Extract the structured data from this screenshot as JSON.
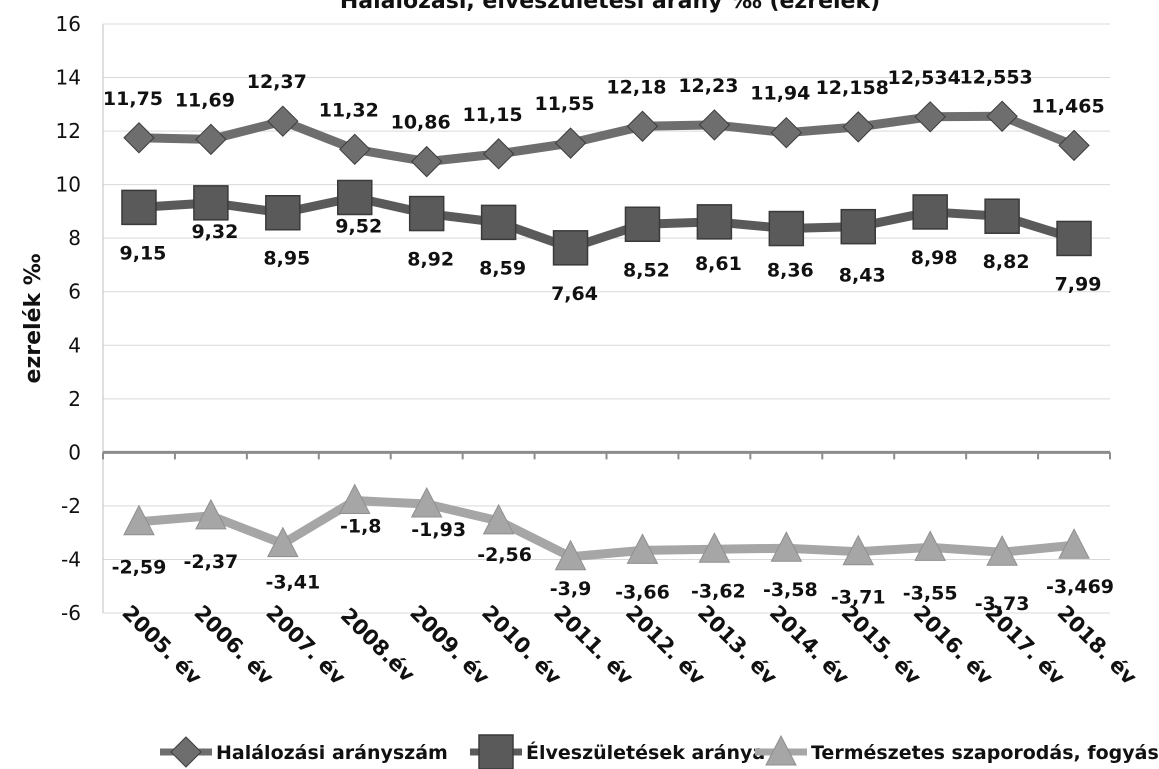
{
  "chart_data": {
    "type": "line",
    "title": "Halálozási, élveszületési arány ‰ (ezrelék)",
    "xlabel": "",
    "ylabel": "ezrelék ‰",
    "ylim": [
      -6,
      16
    ],
    "yticks": [
      -6,
      -4,
      -2,
      0,
      2,
      4,
      6,
      8,
      10,
      12,
      14,
      16
    ],
    "grid": true,
    "legend_position": "bottom",
    "categories": [
      "2005. év",
      "2006. év",
      "2007. év",
      "2008.év",
      "2009. év",
      "2010. év",
      "2011. év",
      "2012. év",
      "2013. év",
      "2014. év",
      "2015. év",
      "2016. év",
      "2017. év",
      "2018. év"
    ],
    "series": [
      {
        "name": "Halálozási arányszám",
        "marker": "diamond",
        "color": "#6e6e6e",
        "values": [
          11.75,
          11.69,
          12.37,
          11.32,
          10.86,
          11.15,
          11.55,
          12.18,
          12.23,
          11.94,
          12.158,
          12.534,
          12.553,
          11.465
        ],
        "labels": [
          "11,75",
          "11,69",
          "12,37",
          "11,32",
          "10,86",
          "11,15",
          "11,55",
          "12,18",
          "12,23",
          "11,94",
          "12,158",
          "12,534",
          "12,553",
          "11,465"
        ]
      },
      {
        "name": "Élveszületések aránya",
        "marker": "square",
        "color": "#5a5a5a",
        "values": [
          9.15,
          9.32,
          8.95,
          9.52,
          8.92,
          8.59,
          7.64,
          8.52,
          8.61,
          8.36,
          8.43,
          8.98,
          8.82,
          7.99
        ],
        "labels": [
          "9,15",
          "9,32",
          "8,95",
          "9,52",
          "8,92",
          "8,59",
          "7,64",
          "8,52",
          "8,61",
          "8,36",
          "8,43",
          "8,98",
          "8,82",
          "7,99"
        ]
      },
      {
        "name": "Természetes szaporodás, fogyás",
        "marker": "triangle",
        "color": "#a6a6a6",
        "values": [
          -2.59,
          -2.37,
          -3.41,
          -1.8,
          -1.93,
          -2.56,
          -3.9,
          -3.66,
          -3.62,
          -3.58,
          -3.71,
          -3.55,
          -3.73,
          -3.469
        ],
        "labels": [
          "-2,59",
          "-2,37",
          "-3,41",
          "-1,8",
          "-1,93",
          "-2,56",
          "-3,9",
          "-3,66",
          "-3,62",
          "-3,58",
          "-3,71",
          "-3,55",
          "-3,73",
          "-3,469"
        ]
      }
    ]
  }
}
